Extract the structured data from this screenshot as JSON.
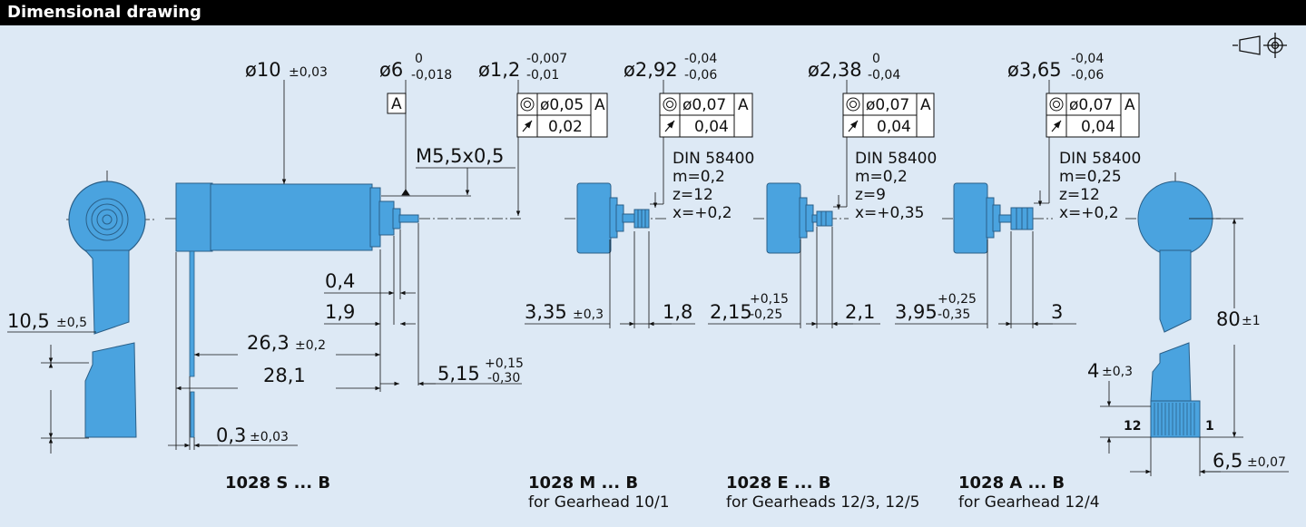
{
  "header": {
    "title": "Dimensional drawing"
  },
  "colors": {
    "body": "#4aa3df",
    "body_dark": "#2f7fb8",
    "background": "#dde9f5",
    "header": "#000000"
  },
  "symbols": {
    "projection": "projection-symbol"
  },
  "motor_s": {
    "diameter": "ø10",
    "diameter_tol": "±0,03",
    "shaft_diameter": "ø6",
    "shaft_tol_upper": "0",
    "shaft_tol_lower": "-0,018",
    "datum": "A",
    "thread": "M5,5x0,5",
    "pin_diameter": "ø1,2",
    "pin_tol_upper": "-0,007",
    "pin_tol_lower": "-0,01",
    "conc_value": "ø0,05",
    "conc_ref": "A",
    "runout_value": "0,02",
    "dim_0_4": "0,4",
    "dim_1_9": "1,9",
    "dim_26_3": "26,3",
    "dim_26_3_tol": "±0,2",
    "dim_28_1": "28,1",
    "dim_5_15": "5,15",
    "dim_5_15_tol_upper": "+0,15",
    "dim_5_15_tol_lower": "-0,30",
    "dim_0_3": "0,3",
    "dim_0_3_tol": "±0,03",
    "dim_10_5": "10,5",
    "dim_10_5_tol": "±0,5",
    "label": "1028 S ... B"
  },
  "motor_m": {
    "diameter": "ø2,92",
    "tol_upper": "-0,04",
    "tol_lower": "-0,06",
    "conc_value": "ø0,07",
    "conc_ref": "A",
    "runout_value": "0,04",
    "gear": [
      "DIN 58400",
      "m=0,2",
      "z=12",
      "x=+0,2"
    ],
    "dim_a": "3,35",
    "dim_a_tol": "±0,3",
    "dim_b": "1,8",
    "label": "1028 M ... B",
    "sublabel": "for Gearhead 10/1"
  },
  "motor_e": {
    "diameter": "ø2,38",
    "tol_upper": "0",
    "tol_lower": "-0,04",
    "conc_value": "ø0,07",
    "conc_ref": "A",
    "runout_value": "0,04",
    "gear": [
      "DIN 58400",
      "m=0,2",
      "z=9",
      "x=+0,35"
    ],
    "dim_a": "2,15",
    "dim_a_tol_upper": "+0,15",
    "dim_a_tol_lower": "-0,25",
    "dim_b": "2,1",
    "label": "1028 E ... B",
    "sublabel": "for Gearheads 12/3, 12/5"
  },
  "motor_a": {
    "diameter": "ø3,65",
    "tol_upper": "-0,04",
    "tol_lower": "-0,06",
    "conc_value": "ø0,07",
    "conc_ref": "A",
    "runout_value": "0,04",
    "gear": [
      "DIN 58400",
      "m=0,25",
      "z=12",
      "x=+0,2"
    ],
    "dim_a": "3,95",
    "dim_a_tol_upper": "+0,25",
    "dim_a_tol_lower": "-0,35",
    "dim_b": "3",
    "label": "1028 A ... B",
    "sublabel": "for Gearhead 12/4"
  },
  "connector": {
    "dim_80": "80",
    "dim_80_tol": "±1",
    "dim_4": "4",
    "dim_4_tol": "±0,3",
    "pin_12": "12",
    "pin_1": "1",
    "dim_6_5": "6,5",
    "dim_6_5_tol": "±0,07"
  }
}
